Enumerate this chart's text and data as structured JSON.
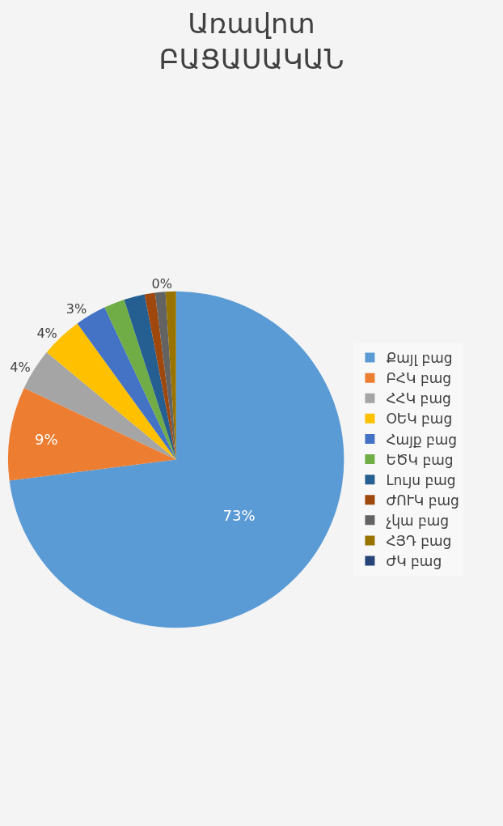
{
  "chart_data": {
    "type": "pie",
    "title": "Առավոտ\nԲԱՑԱՍԱԿԱՆ",
    "categories": [
      "Քայլ բաց",
      "ԲՀԿ բաց",
      "ՀՀԿ բաց",
      "ՕԵԿ բաց",
      "Հայք բաց",
      "ԵԾԿ բաց",
      "Լույս բաց",
      "ԺՈՒԿ բաց",
      "չկա բաց",
      "ՀՅԴ բաց",
      "ԺԿ բաց"
    ],
    "values": [
      73,
      9,
      4,
      4,
      3,
      2,
      2,
      1,
      1,
      1,
      0
    ],
    "colors": [
      "#5b9bd5",
      "#ed7d31",
      "#a5a5a5",
      "#ffc000",
      "#4472c4",
      "#70ad47",
      "#255e91",
      "#9e480e",
      "#636363",
      "#997300",
      "#264478"
    ],
    "value_labels": [
      "73%",
      "9%",
      "4%",
      "4%",
      "3%",
      null,
      null,
      null,
      null,
      null,
      "0%"
    ],
    "legend": "right"
  }
}
